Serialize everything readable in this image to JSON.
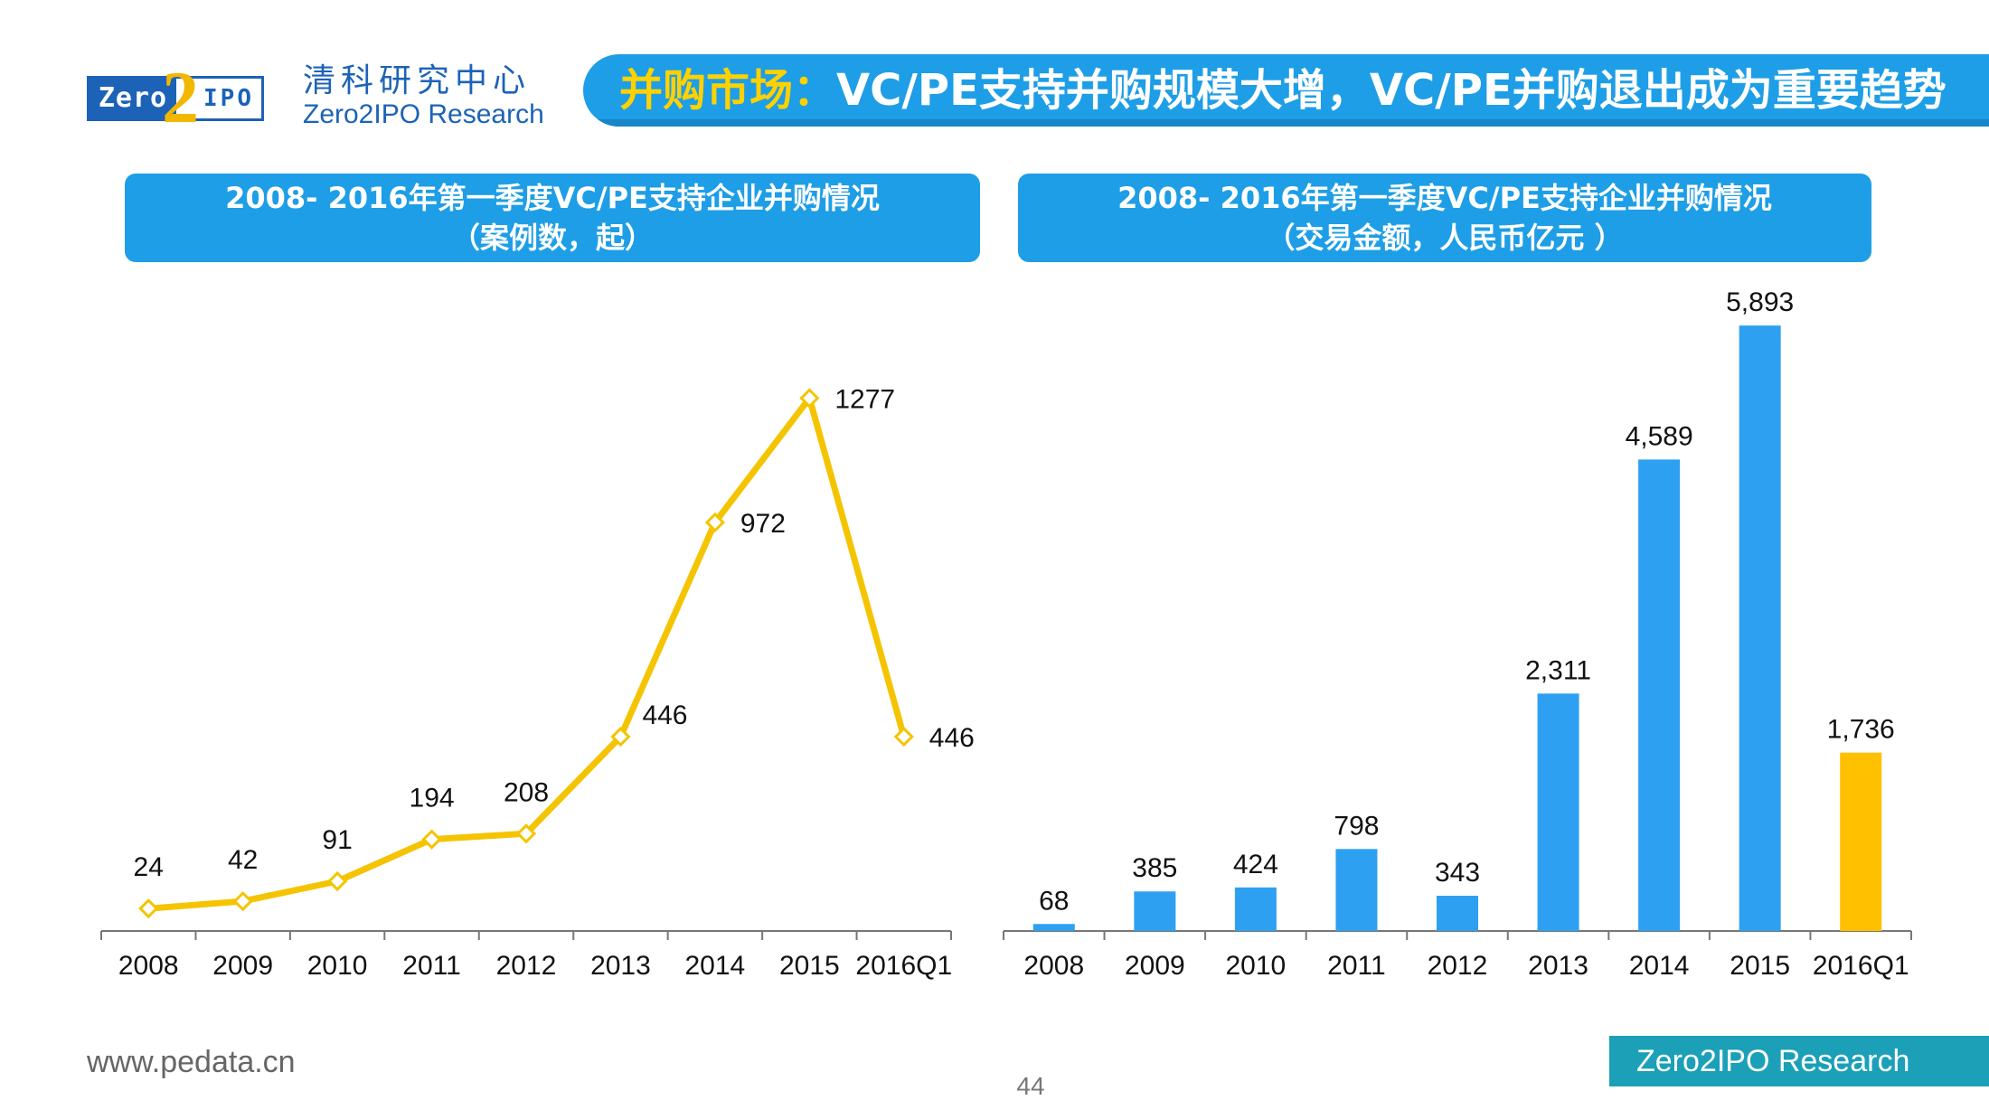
{
  "header": {
    "logo_text_left": "Zero",
    "logo_text_mid": "2",
    "logo_text_right": "IPO",
    "brand_cn": "清科研究中心",
    "brand_en": "Zero2IPO Research",
    "title_highlight": "并购市场：",
    "title_rest": "VC/PE支持并购规模大增，VC/PE并购退出成为重要趋势"
  },
  "footer": {
    "url": "www.pedata.cn",
    "page": "44",
    "brand": "Zero2IPO Research"
  },
  "colors": {
    "accent_blue": "#1e9ee6",
    "line_yellow": "#f5c400",
    "bar_blue": "#2ea0f2",
    "bar_highlight": "#ffc000",
    "footer_teal": "#1ba0b8"
  },
  "chart_data": [
    {
      "type": "line",
      "title": "2008- 2016年第一季度VC/PE支持企业并购情况",
      "subtitle": "（案例数，起）",
      "categories": [
        "2008",
        "2009",
        "2010",
        "2011",
        "2012",
        "2013",
        "2014",
        "2015",
        "2016Q1"
      ],
      "values": [
        24,
        42,
        91,
        194,
        208,
        446,
        972,
        1277,
        446
      ],
      "data_labels": [
        "24",
        "42",
        "91",
        "194",
        "208",
        "446",
        "972",
        "1277",
        "446"
      ],
      "ylim": [
        0,
        1500
      ],
      "grid": false,
      "marker": "diamond"
    },
    {
      "type": "bar",
      "title": "2008- 2016年第一季度VC/PE支持企业并购情况",
      "subtitle": "（交易金额，人民币亿元 ）",
      "categories": [
        "2008",
        "2009",
        "2010",
        "2011",
        "2012",
        "2013",
        "2014",
        "2015",
        "2016Q1"
      ],
      "values": [
        68,
        385,
        424,
        798,
        343,
        2311,
        4589,
        5893,
        1736
      ],
      "data_labels": [
        "68",
        "385",
        "424",
        "798",
        "343",
        "2,311",
        "4,589",
        "5,893",
        "1,736"
      ],
      "highlight_index": 8,
      "ylim": [
        0,
        6000
      ],
      "grid": false
    }
  ]
}
